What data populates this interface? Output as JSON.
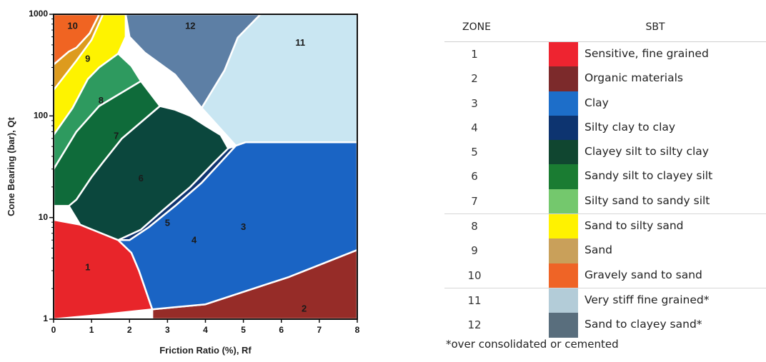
{
  "chart_data": {
    "type": "area",
    "xlabel": "Friction Ratio  (%),  Rf",
    "ylabel": "Cone Bearing (bar), Qt",
    "xlim": [
      0,
      8
    ],
    "ylim": [
      1,
      1000
    ],
    "yscale": "log",
    "xticks": [
      "0",
      "1",
      "2",
      "3",
      "4",
      "5",
      "6",
      "7",
      "8"
    ],
    "yticks": [
      "1",
      "10",
      "100",
      "1000"
    ],
    "zones": [
      {
        "zone": "1",
        "color": "#e8252a",
        "label_at": [
          0.9,
          3.2
        ],
        "polygon": [
          [
            0,
            1
          ],
          [
            0,
            9.5
          ],
          [
            0.7,
            8.5
          ],
          [
            1.7,
            6
          ],
          [
            2.05,
            4.5
          ],
          [
            2.25,
            3
          ],
          [
            2.6,
            1.25
          ],
          [
            1.2,
            1.1
          ],
          [
            0.6,
            1.05
          ],
          [
            0,
            1
          ]
        ]
      },
      {
        "zone": "2",
        "color": "#962c28",
        "label_at": [
          6.6,
          1.25
        ],
        "polygon": [
          [
            2.6,
            1.25
          ],
          [
            4,
            1.4
          ],
          [
            6.2,
            2.6
          ],
          [
            8,
            4.8
          ],
          [
            8,
            1
          ],
          [
            2.6,
            1
          ]
        ]
      },
      {
        "zone": "3",
        "color": "#1a64c4",
        "label_at": [
          5.0,
          8.0
        ],
        "polygon": [
          [
            1.7,
            6
          ],
          [
            2.05,
            4.5
          ],
          [
            2.25,
            3
          ],
          [
            2.6,
            1.25
          ],
          [
            4,
            1.4
          ],
          [
            6.2,
            2.6
          ],
          [
            8,
            4.8
          ],
          [
            8,
            55
          ],
          [
            5.05,
            55
          ],
          [
            4.8,
            51
          ],
          [
            4.4,
            35
          ],
          [
            3.9,
            22
          ],
          [
            3.2,
            13
          ],
          [
            2.5,
            8
          ],
          [
            2,
            6
          ]
        ]
      },
      {
        "zone": "4",
        "color": "#0e3270",
        "label_at": [
          3.7,
          5.9
        ],
        "polygon": [
          [
            2,
            6
          ],
          [
            2.5,
            8
          ],
          [
            3.2,
            13
          ],
          [
            3.9,
            22
          ],
          [
            4.4,
            35
          ],
          [
            4.8,
            51
          ],
          [
            5.05,
            55
          ],
          [
            4.6,
            48
          ],
          [
            4.2,
            34
          ],
          [
            3.6,
            20
          ],
          [
            2.9,
            12
          ],
          [
            2.3,
            7.6
          ],
          [
            1.7,
            6
          ]
        ]
      },
      {
        "zone": "5",
        "color": "#0b473d",
        "label_at": [
          3.0,
          8.7
        ],
        "polygon": [
          [
            1.7,
            6
          ],
          [
            2.3,
            7.6
          ],
          [
            2.9,
            12
          ],
          [
            3.6,
            20
          ],
          [
            4.2,
            34
          ],
          [
            4.6,
            48
          ],
          [
            4.4,
            65
          ],
          [
            4,
            80
          ],
          [
            3.6,
            100
          ],
          [
            3.2,
            115
          ],
          [
            2.8,
            125
          ],
          [
            1.8,
            60
          ],
          [
            1.3,
            35
          ],
          [
            1,
            25
          ],
          [
            0.6,
            15
          ],
          [
            0.4,
            13
          ],
          [
            0.7,
            8.5
          ]
        ]
      },
      {
        "zone": "6",
        "color": "#0f6b3a",
        "label_at": [
          2.3,
          24.0
        ],
        "polygon": [
          [
            0,
            13
          ],
          [
            0.4,
            13
          ],
          [
            0.6,
            15
          ],
          [
            1,
            25
          ],
          [
            1.3,
            35
          ],
          [
            1.8,
            60
          ],
          [
            2.8,
            125
          ],
          [
            2.3,
            220
          ],
          [
            1.2,
            125
          ],
          [
            0.6,
            70
          ],
          [
            0,
            30
          ]
        ]
      },
      {
        "zone": "7",
        "color": "#2e9a5f",
        "label_at": [
          1.65,
          63.0
        ],
        "polygon": [
          [
            0,
            30
          ],
          [
            0.6,
            70
          ],
          [
            1.2,
            125
          ],
          [
            2.3,
            220
          ],
          [
            2.05,
            310
          ],
          [
            1.7,
            410
          ],
          [
            1.2,
            300
          ],
          [
            0.9,
            230
          ],
          [
            0.5,
            120
          ],
          [
            0,
            65
          ]
        ]
      },
      {
        "zone": "8",
        "color": "#fef300",
        "label_at": [
          1.25,
          140.0
        ],
        "polygon": [
          [
            0,
            65
          ],
          [
            0.5,
            120
          ],
          [
            0.9,
            230
          ],
          [
            1.2,
            300
          ],
          [
            1.7,
            410
          ],
          [
            1.9,
            600
          ],
          [
            1.9,
            1000
          ],
          [
            1.3,
            1000
          ],
          [
            1,
            560
          ],
          [
            0.6,
            350
          ],
          [
            0,
            180
          ]
        ]
      },
      {
        "zone": "9",
        "color": "#dd9b1e",
        "label_at": [
          0.9,
          360.0
        ],
        "polygon": [
          [
            0,
            180
          ],
          [
            0.6,
            350
          ],
          [
            1,
            560
          ],
          [
            1.3,
            1000
          ],
          [
            1.9,
            1000
          ],
          [
            1.35,
            1000
          ],
          [
            1.2,
            1000
          ],
          [
            0.95,
            650
          ],
          [
            0.6,
            470
          ],
          [
            0.4,
            430
          ],
          [
            0,
            320
          ]
        ]
      },
      {
        "zone": "10",
        "color": "#f06422",
        "label_at": [
          0.5,
          760.0
        ],
        "polygon": [
          [
            0,
            320
          ],
          [
            0.4,
            430
          ],
          [
            0.6,
            470
          ],
          [
            0.95,
            650
          ],
          [
            1.2,
            1000
          ],
          [
            0,
            1000
          ]
        ]
      },
      {
        "zone": "11",
        "color": "#c9e6f2",
        "label_at": [
          6.5,
          520.0
        ],
        "polygon": [
          [
            3.9,
            120
          ],
          [
            4.5,
            280
          ],
          [
            4.85,
            590
          ],
          [
            5.45,
            1000
          ],
          [
            8,
            1000
          ],
          [
            8,
            55
          ],
          [
            5.05,
            55
          ],
          [
            4.8,
            51
          ]
        ]
      },
      {
        "zone": "12",
        "color": "#5d7fa5",
        "label_at": [
          3.6,
          760.0
        ],
        "polygon": [
          [
            1.9,
            1000
          ],
          [
            5.45,
            1000
          ],
          [
            4.85,
            590
          ],
          [
            4.5,
            280
          ],
          [
            3.9,
            120
          ],
          [
            3.2,
            255
          ],
          [
            2.4,
            420
          ],
          [
            2,
            600
          ]
        ]
      }
    ]
  },
  "legend": {
    "header_zone": "ZONE",
    "header_sbt": "SBT",
    "rows": [
      {
        "zone": "1",
        "label": "Sensitive, fine grained",
        "color": "#ee2430"
      },
      {
        "zone": "2",
        "label": "Organic materials",
        "color": "#7c2a2b"
      },
      {
        "zone": "3",
        "label": "Clay",
        "color": "#1d6ec9"
      },
      {
        "zone": "4",
        "label": "Silty clay to clay",
        "color": "#0d3470"
      },
      {
        "zone": "5",
        "label": "Clayey silt to silty clay",
        "color": "#104630"
      },
      {
        "zone": "6",
        "label": "Sandy silt to clayey silt",
        "color": "#1a7c32"
      },
      {
        "zone": "7",
        "label": "Silty sand to sandy silt",
        "color": "#74c86d"
      },
      {
        "zone": "8",
        "label": "Sand to silty sand",
        "color": "#fff200"
      },
      {
        "zone": "9",
        "label": "Sand",
        "color": "#c9a05a"
      },
      {
        "zone": "10",
        "label": "Gravely sand to sand",
        "color": "#ef6426"
      },
      {
        "zone": "11",
        "label": "Very stiff fine grained*",
        "color": "#b3ccd8"
      },
      {
        "zone": "12",
        "label": "Sand to clayey sand*",
        "color": "#596e7d"
      }
    ],
    "footnote": "*over consolidated or cemented"
  }
}
